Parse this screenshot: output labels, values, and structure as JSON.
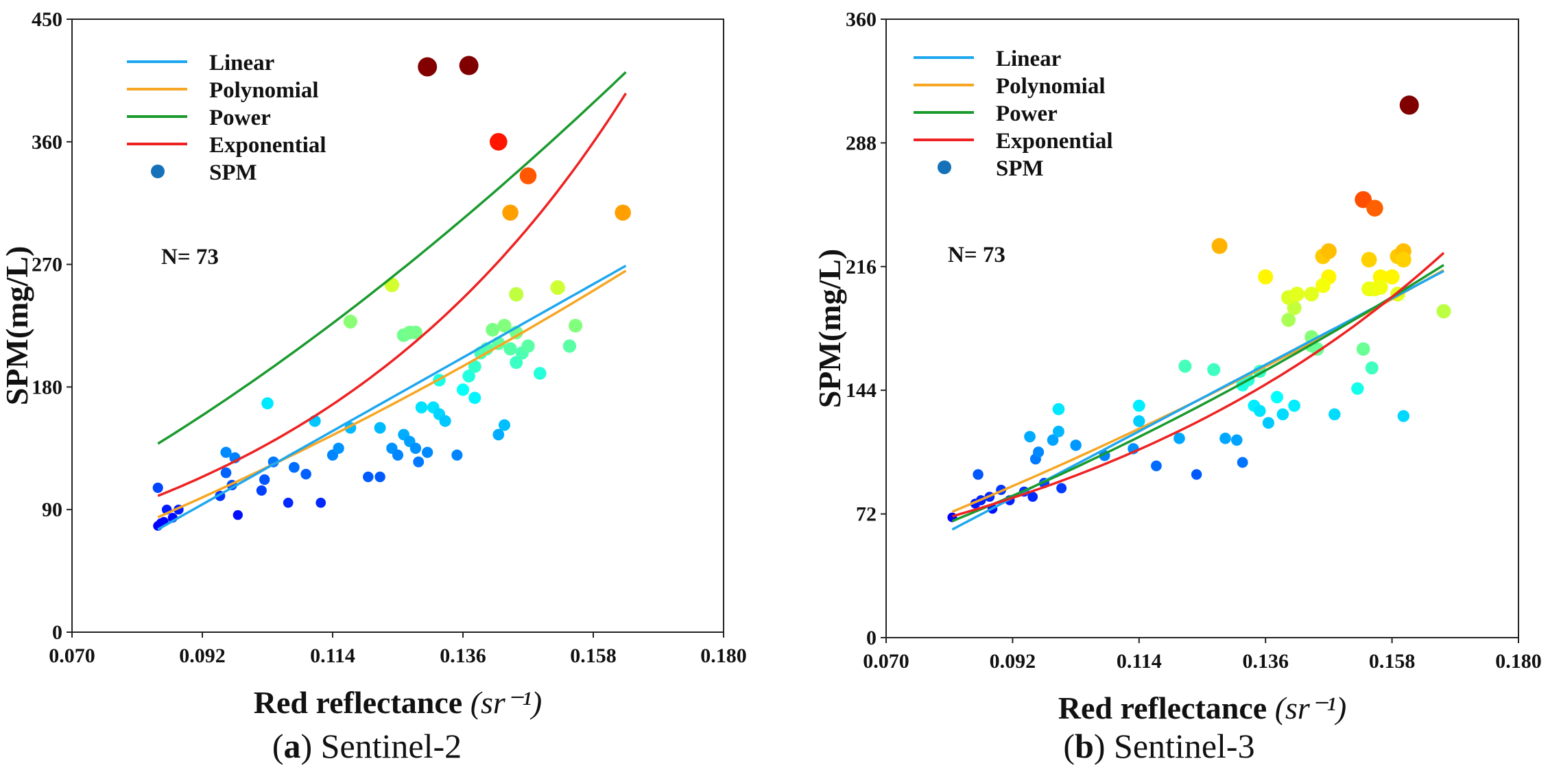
{
  "chart_data": [
    {
      "type": "scatter",
      "panel": "a",
      "caption_letter": "a",
      "caption_text": " Sentinel-2",
      "xlabel": "Red reflectance",
      "xlabel_unit": "(sr⁻¹)",
      "ylabel": "SPM(mg/L)",
      "xlim": [
        0.07,
        0.18
      ],
      "ylim": [
        0,
        450
      ],
      "xticks": [
        "0.070",
        "0.092",
        "0.114",
        "0.136",
        "0.158",
        "0.180"
      ],
      "yticks": [
        "0",
        "90",
        "180",
        "270",
        "360",
        "450"
      ],
      "n_label": "N= 73",
      "legend": [
        "Linear",
        "Polynomial",
        "Power",
        "Exponential",
        "SPM"
      ],
      "fit_colors": {
        "Linear": "#1ea7ee",
        "Polynomial": "#f6a623",
        "Power": "#1a9a2e",
        "Exponential": "#ee2222"
      },
      "fit_range": [
        0.0845,
        0.1635
      ],
      "fits": {
        "Linear": {
          "form": "a + b*x",
          "a": -131.6,
          "b": 2450
        },
        "Polynomial": {
          "form": "a + b*x + c*x^2",
          "a": -40.0,
          "b": 1050,
          "c": 5000
        },
        "Power": {
          "form": "a * x^b",
          "a": 8160,
          "b": 1.65
        },
        "Exponential": {
          "form": "a * exp(b*x)",
          "a": 23.0,
          "b": 17.4
        }
      },
      "points": [
        [
          0.0845,
          78
        ],
        [
          0.085,
          80
        ],
        [
          0.0855,
          81
        ],
        [
          0.086,
          90
        ],
        [
          0.087,
          84
        ],
        [
          0.088,
          90
        ],
        [
          0.0845,
          106
        ],
        [
          0.095,
          100
        ],
        [
          0.096,
          117
        ],
        [
          0.097,
          108
        ],
        [
          0.0975,
          128
        ],
        [
          0.096,
          132
        ],
        [
          0.098,
          86
        ],
        [
          0.102,
          104
        ],
        [
          0.1025,
          112
        ],
        [
          0.104,
          125
        ],
        [
          0.1065,
          95
        ],
        [
          0.1075,
          121
        ],
        [
          0.1095,
          116
        ],
        [
          0.111,
          155
        ],
        [
          0.112,
          95
        ],
        [
          0.114,
          130
        ],
        [
          0.115,
          135
        ],
        [
          0.117,
          150
        ],
        [
          0.12,
          114
        ],
        [
          0.103,
          168
        ],
        [
          0.122,
          150
        ],
        [
          0.124,
          135
        ],
        [
          0.125,
          130
        ],
        [
          0.126,
          145
        ],
        [
          0.127,
          140
        ],
        [
          0.128,
          135
        ],
        [
          0.1285,
          125
        ],
        [
          0.13,
          132
        ],
        [
          0.129,
          165
        ],
        [
          0.131,
          165
        ],
        [
          0.132,
          160
        ],
        [
          0.133,
          155
        ],
        [
          0.135,
          130
        ],
        [
          0.132,
          185
        ],
        [
          0.136,
          178
        ],
        [
          0.137,
          188
        ],
        [
          0.138,
          172
        ],
        [
          0.142,
          145
        ],
        [
          0.143,
          152
        ],
        [
          0.138,
          195
        ],
        [
          0.139,
          205
        ],
        [
          0.14,
          208
        ],
        [
          0.141,
          222
        ],
        [
          0.142,
          212
        ],
        [
          0.144,
          208
        ],
        [
          0.145,
          198
        ],
        [
          0.146,
          205
        ],
        [
          0.147,
          210
        ],
        [
          0.149,
          190
        ],
        [
          0.117,
          228
        ],
        [
          0.126,
          218
        ],
        [
          0.127,
          220
        ],
        [
          0.128,
          220
        ],
        [
          0.143,
          225
        ],
        [
          0.145,
          220
        ],
        [
          0.154,
          210
        ],
        [
          0.155,
          225
        ],
        [
          0.124,
          255
        ],
        [
          0.145,
          248
        ],
        [
          0.152,
          253
        ],
        [
          0.144,
          308
        ],
        [
          0.163,
          308
        ],
        [
          0.147,
          335
        ],
        [
          0.142,
          360
        ],
        [
          0.13,
          415
        ],
        [
          0.137,
          416
        ],
        [
          0.122,
          114
        ]
      ]
    },
    {
      "type": "scatter",
      "panel": "b",
      "caption_letter": "b",
      "caption_text": " Sentinel-3",
      "xlabel": "Red reflectance",
      "xlabel_unit": "(sr⁻¹)",
      "ylabel": "SPM(mg/L)",
      "xlim": [
        0.07,
        0.18
      ],
      "ylim": [
        0,
        360
      ],
      "xticks": [
        "0.070",
        "0.092",
        "0.114",
        "0.136",
        "0.158",
        "0.180"
      ],
      "yticks": [
        "0",
        "72",
        "144",
        "216",
        "288",
        "360"
      ],
      "n_label": "N= 73",
      "legend": [
        "Linear",
        "Polynomial",
        "Power",
        "Exponential",
        "SPM"
      ],
      "fit_colors": {
        "Linear": "#1ea7ee",
        "Polynomial": "#f6a623",
        "Power": "#1a9a2e",
        "Exponential": "#ee2222"
      },
      "fit_range": [
        0.0815,
        0.167
      ],
      "fits": {
        "Linear": {
          "form": "a + b*x",
          "a": -80.5,
          "b": 1760
        },
        "Polynomial": {
          "form": "a + b*x + c*x^2",
          "a": -20.0,
          "b": 900,
          "c": 3000
        },
        "Power": {
          "form": "a * x^b",
          "a": 3940,
          "b": 1.62
        },
        "Exponential": {
          "form": "a * exp(b*x)",
          "a": 23.5,
          "b": 13.5
        }
      },
      "points": [
        [
          0.0815,
          70
        ],
        [
          0.0855,
          78
        ],
        [
          0.086,
          95
        ],
        [
          0.0865,
          80
        ],
        [
          0.088,
          82
        ],
        [
          0.0885,
          75
        ],
        [
          0.09,
          86
        ],
        [
          0.0915,
          80
        ],
        [
          0.094,
          85
        ],
        [
          0.095,
          117
        ],
        [
          0.096,
          104
        ],
        [
          0.0965,
          108
        ],
        [
          0.0975,
          90
        ],
        [
          0.099,
          115
        ],
        [
          0.1,
          120
        ],
        [
          0.1005,
          87
        ],
        [
          0.1,
          133
        ],
        [
          0.103,
          112
        ],
        [
          0.0955,
          82
        ],
        [
          0.108,
          106
        ],
        [
          0.113,
          110
        ],
        [
          0.114,
          135
        ],
        [
          0.114,
          126
        ],
        [
          0.117,
          100
        ],
        [
          0.121,
          116
        ],
        [
          0.122,
          158
        ],
        [
          0.124,
          95
        ],
        [
          0.127,
          156
        ],
        [
          0.129,
          116
        ],
        [
          0.131,
          115
        ],
        [
          0.132,
          102
        ],
        [
          0.132,
          147
        ],
        [
          0.133,
          150
        ],
        [
          0.134,
          135
        ],
        [
          0.135,
          132
        ],
        [
          0.1365,
          125
        ],
        [
          0.138,
          140
        ],
        [
          0.139,
          130
        ],
        [
          0.141,
          135
        ],
        [
          0.135,
          155
        ],
        [
          0.144,
          170
        ],
        [
          0.145,
          168
        ],
        [
          0.148,
          130
        ],
        [
          0.152,
          145
        ],
        [
          0.153,
          168
        ],
        [
          0.1545,
          157
        ],
        [
          0.16,
          129
        ],
        [
          0.144,
          175
        ],
        [
          0.14,
          185
        ],
        [
          0.141,
          192
        ],
        [
          0.14,
          198
        ],
        [
          0.1415,
          200
        ],
        [
          0.136,
          210
        ],
        [
          0.147,
          210
        ],
        [
          0.146,
          222
        ],
        [
          0.147,
          225
        ],
        [
          0.154,
          203
        ],
        [
          0.155,
          203
        ],
        [
          0.158,
          210
        ],
        [
          0.159,
          200
        ],
        [
          0.154,
          220
        ],
        [
          0.159,
          222
        ],
        [
          0.16,
          225
        ],
        [
          0.128,
          228
        ],
        [
          0.167,
          190
        ],
        [
          0.153,
          255
        ],
        [
          0.155,
          250
        ],
        [
          0.161,
          310
        ],
        [
          0.144,
          200
        ],
        [
          0.156,
          210
        ],
        [
          0.16,
          220
        ],
        [
          0.146,
          205
        ],
        [
          0.156,
          204
        ]
      ]
    }
  ]
}
